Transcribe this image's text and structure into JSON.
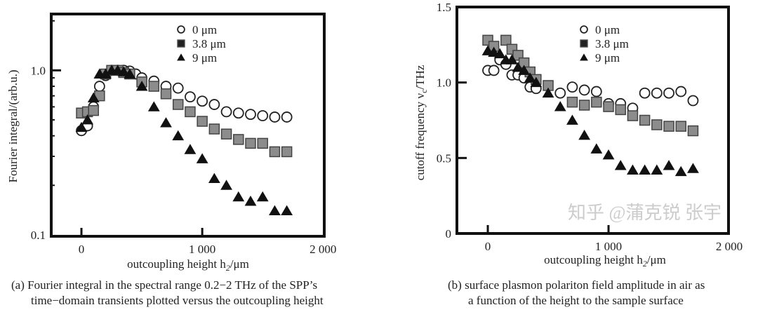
{
  "colors": {
    "axis": "#111111",
    "open_fill": "#ffffff",
    "square_fill": "#8c8c8c",
    "triangle_fill": "#111111"
  },
  "watermark": "知乎 @蒲克锐 张宇",
  "chart_data": [
    {
      "type": "scatter",
      "yscale": "log",
      "xlabel": "outcoupling height h",
      "xlabel_sub": "2",
      "xlabel_unit": "/μm",
      "ylabel": "Fourier integral/(arb.u.)",
      "caption_line1": "(a) Fourier integral in the spectral range 0.2−2 THz of the SPP’s",
      "caption_line2": "time−domain transients plotted versus the outcoupling height",
      "xlim": [
        -250,
        2010
      ],
      "ylim": [
        0.098,
        2.2
      ],
      "xticks": [
        {
          "v": 0,
          "label": "0"
        },
        {
          "v": 1000,
          "label": "1 000"
        },
        {
          "v": 2000,
          "label": "2 000"
        }
      ],
      "yticks": [
        {
          "v": 1.0,
          "label": "1.0"
        },
        {
          "v": 0.1,
          "label": "0.1"
        }
      ],
      "legend_position": "top-center",
      "series": [
        {
          "name": "0 μm",
          "marker": "circle",
          "x": [
            0,
            50,
            100,
            150,
            200,
            250,
            300,
            350,
            400,
            450,
            500,
            600,
            700,
            800,
            900,
            1000,
            1100,
            1200,
            1300,
            1400,
            1500,
            1600,
            1700
          ],
          "y": [
            0.43,
            0.46,
            0.6,
            0.8,
            0.93,
            1.0,
            1.0,
            1.0,
            0.99,
            0.95,
            0.9,
            0.86,
            0.8,
            0.78,
            0.69,
            0.65,
            0.62,
            0.56,
            0.55,
            0.54,
            0.53,
            0.52,
            0.52
          ]
        },
        {
          "name": "3.8 μm",
          "marker": "square",
          "x": [
            0,
            50,
            100,
            150,
            200,
            250,
            300,
            350,
            400,
            500,
            600,
            700,
            800,
            900,
            1000,
            1100,
            1200,
            1300,
            1400,
            1500,
            1600,
            1700
          ],
          "y": [
            0.55,
            0.56,
            0.57,
            0.7,
            0.95,
            1.0,
            1.0,
            0.97,
            0.95,
            0.85,
            0.8,
            0.72,
            0.62,
            0.56,
            0.49,
            0.44,
            0.41,
            0.38,
            0.36,
            0.36,
            0.32,
            0.32
          ]
        },
        {
          "name": "9 μm",
          "marker": "triangle",
          "x": [
            0,
            50,
            100,
            150,
            200,
            250,
            300,
            350,
            400,
            500,
            600,
            700,
            800,
            900,
            1000,
            1100,
            1200,
            1300,
            1400,
            1500,
            1600,
            1700
          ],
          "y": [
            0.45,
            0.5,
            0.68,
            0.95,
            0.95,
            1.0,
            1.0,
            0.98,
            0.95,
            0.8,
            0.6,
            0.48,
            0.4,
            0.33,
            0.29,
            0.22,
            0.2,
            0.17,
            0.16,
            0.17,
            0.14,
            0.14
          ]
        }
      ]
    },
    {
      "type": "scatter",
      "yscale": "linear",
      "xlabel": "outcoupling height h",
      "xlabel_sub": "2",
      "xlabel_unit": "/μm",
      "ylabel": "cutoff frequency ν",
      "ylabel_sub": "c",
      "ylabel_unit": "/THz",
      "caption_line1": "(b) surface plasmon polariton field amplitude in air as",
      "caption_line2": "a function of the height to the sample surface",
      "xlim": [
        -256,
        1994
      ],
      "ylim": [
        0,
        1.5
      ],
      "xticks": [
        {
          "v": 0,
          "label": "0"
        },
        {
          "v": 1000,
          "label": "1 000"
        },
        {
          "v": 2000,
          "label": "2 000"
        }
      ],
      "yticks": [
        {
          "v": 0,
          "label": "0"
        },
        {
          "v": 0.5,
          "label": "0.5"
        },
        {
          "v": 1.0,
          "label": "1.0"
        },
        {
          "v": 1.5,
          "label": "1.5"
        }
      ],
      "legend_position": "top-center",
      "series": [
        {
          "name": "0 μm",
          "marker": "circle",
          "x": [
            0,
            50,
            100,
            150,
            200,
            250,
            300,
            350,
            400,
            600,
            700,
            800,
            900,
            1000,
            1100,
            1200,
            1300,
            1400,
            1500,
            1600,
            1700
          ],
          "y": [
            1.08,
            1.08,
            1.15,
            1.12,
            1.05,
            1.05,
            1.03,
            0.97,
            0.96,
            0.93,
            0.97,
            0.95,
            0.94,
            0.86,
            0.86,
            0.83,
            0.93,
            0.93,
            0.93,
            0.94,
            0.88
          ]
        },
        {
          "name": "3.8 μm",
          "marker": "square",
          "x": [
            0,
            50,
            150,
            200,
            250,
            300,
            350,
            400,
            500,
            700,
            800,
            900,
            1000,
            1100,
            1200,
            1300,
            1400,
            1500,
            1600,
            1700
          ],
          "y": [
            1.28,
            1.24,
            1.28,
            1.22,
            1.18,
            1.13,
            1.07,
            1.02,
            0.98,
            0.87,
            0.85,
            0.87,
            0.84,
            0.82,
            0.78,
            0.75,
            0.72,
            0.71,
            0.71,
            0.68
          ]
        },
        {
          "name": "9 μm",
          "marker": "triangle",
          "x": [
            0,
            50,
            100,
            150,
            200,
            250,
            300,
            350,
            400,
            500,
            600,
            700,
            800,
            900,
            1000,
            1100,
            1200,
            1300,
            1400,
            1500,
            1600,
            1700
          ],
          "y": [
            1.21,
            1.2,
            1.19,
            1.15,
            1.15,
            1.1,
            1.08,
            1.03,
            1.0,
            0.93,
            0.84,
            0.75,
            0.65,
            0.56,
            0.52,
            0.45,
            0.42,
            0.42,
            0.42,
            0.45,
            0.41,
            0.43
          ]
        }
      ]
    }
  ]
}
